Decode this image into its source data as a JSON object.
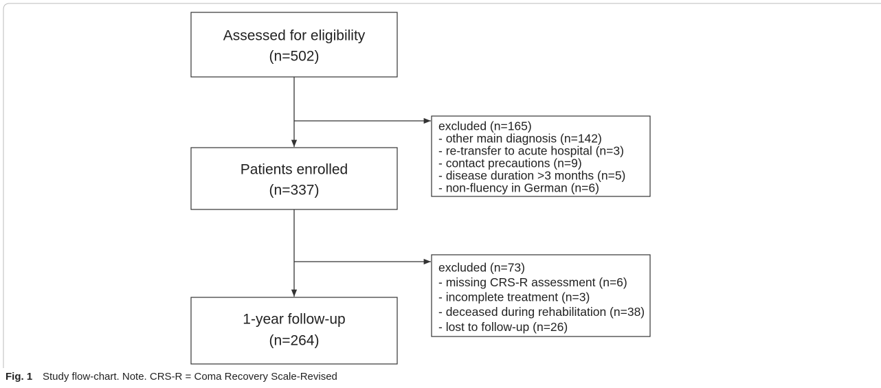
{
  "nodes": [
    {
      "label": "Assessed for eligibility",
      "count": "(n=502)"
    },
    {
      "label": "Patients enrolled",
      "count": "(n=337)"
    },
    {
      "label": "1-year follow-up",
      "count": "(n=264)"
    }
  ],
  "exclusions": [
    {
      "title": "excluded (n=165)",
      "items": [
        "- other main diagnosis (n=142)",
        "- re-transfer to acute hospital (n=3)",
        "- contact precautions (n=9)",
        "- disease duration >3 months (n=5)",
        "- non-fluency in German (n=6)"
      ]
    },
    {
      "title": "excluded (n=73)",
      "items": [
        "- missing CRS-R assessment (n=6)",
        "- incomplete treatment (n=3)",
        "- deceased during rehabilitation (n=38)",
        "- lost to follow-up (n=26)"
      ]
    }
  ],
  "caption": {
    "label": "Fig. 1",
    "text": "Study flow-chart. Note. CRS-R = Coma Recovery Scale-Revised"
  }
}
